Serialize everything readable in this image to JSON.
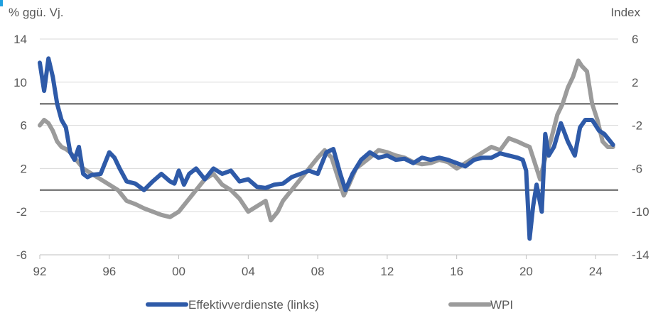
{
  "chart_data": {
    "type": "line",
    "left_axis_label": "% ggü. Vj.",
    "right_axis_label": "Index",
    "x_ticks": [
      "92",
      "96",
      "00",
      "04",
      "08",
      "12",
      "16",
      "20",
      "24"
    ],
    "x_range": [
      1992,
      2025.3
    ],
    "y_left": {
      "ticks": [
        14,
        10,
        6,
        2,
        -2,
        -6
      ],
      "range": [
        -6,
        14
      ]
    },
    "y_right": {
      "ticks": [
        6,
        2,
        -2,
        -6,
        -10,
        -14
      ],
      "range": [
        -14,
        6
      ]
    },
    "reference_lines_left": [
      8,
      0
    ],
    "grid": true,
    "legend_position": "bottom",
    "series": [
      {
        "name": "Effektivverdienste (links)",
        "axis": "left",
        "color": "#2e5aa8",
        "x": [
          1992.0,
          1992.25,
          1992.5,
          1992.75,
          1993.0,
          1993.25,
          1993.5,
          1993.75,
          1994.0,
          1994.25,
          1994.5,
          1994.75,
          1995.0,
          1995.5,
          1996.0,
          1996.3,
          1996.6,
          1997.0,
          1997.5,
          1998.0,
          1998.5,
          1999.0,
          1999.5,
          1999.75,
          2000.0,
          2000.3,
          2000.6,
          2001.0,
          2001.5,
          2002.0,
          2002.5,
          2003.0,
          2003.5,
          2004.0,
          2004.5,
          2005.0,
          2005.5,
          2006.0,
          2006.5,
          2007.0,
          2007.5,
          2008.0,
          2008.5,
          2008.9,
          2009.3,
          2009.6,
          2010.0,
          2010.5,
          2011.0,
          2011.5,
          2012.0,
          2012.5,
          2013.0,
          2013.5,
          2014.0,
          2014.5,
          2015.0,
          2015.5,
          2016.0,
          2016.5,
          2017.0,
          2017.5,
          2018.0,
          2018.5,
          2019.0,
          2019.5,
          2019.8,
          2020.0,
          2020.2,
          2020.4,
          2020.6,
          2020.9,
          2021.1,
          2021.3,
          2021.6,
          2022.0,
          2022.4,
          2022.8,
          2023.1,
          2023.4,
          2023.8,
          2024.2,
          2024.5,
          2024.8,
          2025.0
        ],
        "values": [
          11.8,
          9.2,
          12.2,
          10.5,
          8.0,
          6.5,
          5.8,
          3.5,
          2.8,
          4.0,
          1.5,
          1.2,
          1.4,
          1.5,
          3.5,
          3.0,
          2.0,
          0.8,
          0.6,
          0.0,
          0.8,
          1.5,
          0.8,
          0.6,
          1.8,
          0.5,
          1.5,
          2.0,
          1.0,
          2.0,
          1.5,
          1.8,
          0.8,
          1.0,
          0.3,
          0.2,
          0.5,
          0.6,
          1.2,
          1.5,
          1.8,
          1.5,
          3.5,
          3.8,
          1.5,
          0.0,
          1.5,
          2.8,
          3.5,
          3.0,
          3.2,
          2.8,
          2.9,
          2.5,
          3.0,
          2.8,
          3.0,
          2.8,
          2.5,
          2.2,
          2.8,
          3.0,
          3.0,
          3.4,
          3.2,
          3.0,
          2.8,
          1.8,
          -4.5,
          -1.5,
          0.5,
          -2.0,
          5.2,
          3.2,
          4.0,
          6.2,
          4.5,
          3.2,
          5.8,
          6.5,
          6.5,
          5.5,
          5.2,
          4.6,
          4.2
        ]
      },
      {
        "name": "WPI",
        "axis": "right",
        "color": "#9b9b9b",
        "x": [
          1992.0,
          1992.25,
          1992.5,
          1992.75,
          1993.0,
          1993.25,
          1993.5,
          1993.75,
          1994.0,
          1994.5,
          1995.0,
          1995.5,
          1996.0,
          1996.5,
          1997.0,
          1997.5,
          1998.0,
          1998.5,
          1999.0,
          1999.5,
          2000.0,
          2000.5,
          2001.0,
          2001.5,
          2002.0,
          2002.5,
          2003.0,
          2003.5,
          2004.0,
          2004.5,
          2005.0,
          2005.3,
          2005.7,
          2006.0,
          2006.5,
          2007.0,
          2007.5,
          2008.0,
          2008.4,
          2008.8,
          2009.2,
          2009.5,
          2009.8,
          2010.2,
          2010.6,
          2011.0,
          2011.5,
          2012.0,
          2012.5,
          2013.0,
          2013.5,
          2014.0,
          2014.5,
          2015.0,
          2015.5,
          2016.0,
          2016.5,
          2017.0,
          2017.5,
          2018.0,
          2018.5,
          2019.0,
          2019.5,
          2019.9,
          2020.2,
          2020.5,
          2020.8,
          2021.1,
          2021.4,
          2021.8,
          2022.1,
          2022.4,
          2022.7,
          2023.0,
          2023.2,
          2023.5,
          2023.8,
          2024.1,
          2024.4,
          2024.7,
          2025.0
        ],
        "values": [
          -2.0,
          -1.5,
          -1.8,
          -2.5,
          -3.5,
          -4.0,
          -4.2,
          -4.5,
          -5.0,
          -6.0,
          -6.5,
          -7.0,
          -7.5,
          -8.0,
          -9.0,
          -9.3,
          -9.7,
          -10.0,
          -10.3,
          -10.5,
          -10.0,
          -9.0,
          -8.0,
          -7.0,
          -6.5,
          -7.5,
          -8.0,
          -8.8,
          -10.0,
          -9.5,
          -9.0,
          -10.8,
          -10.0,
          -9.0,
          -8.0,
          -7.0,
          -6.0,
          -5.0,
          -4.3,
          -5.0,
          -7.0,
          -8.5,
          -7.5,
          -6.0,
          -5.5,
          -5.0,
          -4.3,
          -4.5,
          -4.8,
          -5.0,
          -5.4,
          -5.6,
          -5.5,
          -5.2,
          -5.4,
          -6.0,
          -5.5,
          -5.0,
          -4.5,
          -4.0,
          -4.3,
          -3.2,
          -3.5,
          -3.8,
          -4.0,
          -5.5,
          -7.0,
          -5.0,
          -3.5,
          -1.0,
          0.0,
          1.5,
          2.5,
          4.0,
          3.5,
          3.0,
          0.0,
          -1.5,
          -3.5,
          -4.0,
          -4.0
        ]
      }
    ]
  }
}
